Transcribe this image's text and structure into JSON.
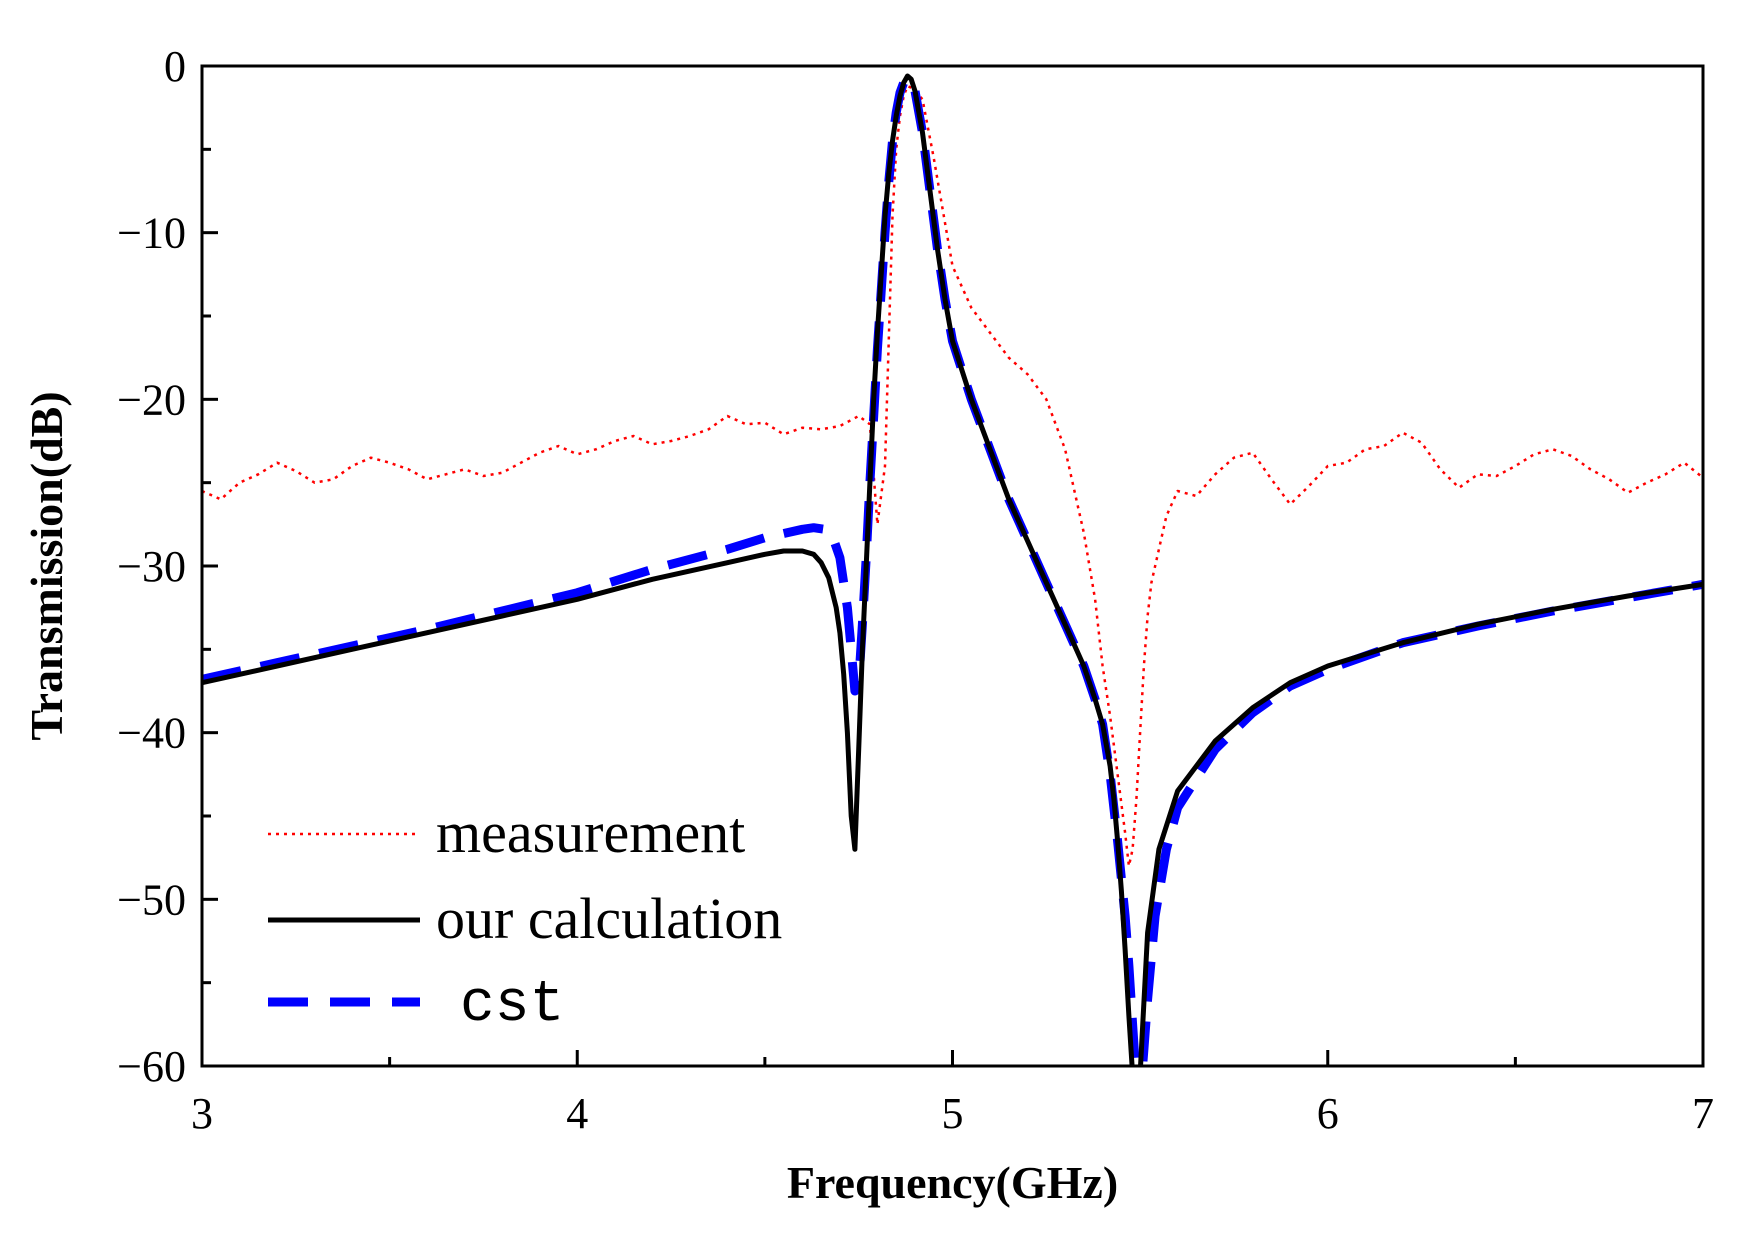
{
  "chart_data": {
    "type": "line",
    "title": "",
    "xlabel": "Frequency(GHz)",
    "ylabel": "Transmission(dB)",
    "xlim": [
      3,
      7
    ],
    "ylim": [
      -60,
      0
    ],
    "x_ticks": [
      3,
      4,
      5,
      6,
      7
    ],
    "x_tick_labels": [
      "3",
      "4",
      "5",
      "6",
      "7"
    ],
    "y_ticks": [
      0,
      -10,
      -20,
      -30,
      -40,
      -50,
      -60
    ],
    "y_tick_labels": [
      "0",
      "−10",
      "−20",
      "−30",
      "−40",
      "−50",
      "−60"
    ],
    "grid": false,
    "legend_position": "bottom-left",
    "series": [
      {
        "name": "measurement",
        "color": "#ff0000",
        "style": "dotted",
        "x": [
          3.0,
          3.05,
          3.1,
          3.15,
          3.2,
          3.25,
          3.3,
          3.35,
          3.4,
          3.45,
          3.5,
          3.55,
          3.6,
          3.65,
          3.7,
          3.75,
          3.8,
          3.85,
          3.9,
          3.95,
          4.0,
          4.05,
          4.1,
          4.15,
          4.2,
          4.25,
          4.3,
          4.35,
          4.4,
          4.45,
          4.5,
          4.55,
          4.6,
          4.65,
          4.7,
          4.75,
          4.78,
          4.8,
          4.82,
          4.84,
          4.85,
          4.86,
          4.87,
          4.88,
          4.89,
          4.9,
          4.92,
          4.95,
          5.0,
          5.05,
          5.1,
          5.15,
          5.2,
          5.25,
          5.3,
          5.35,
          5.38,
          5.4,
          5.42,
          5.44,
          5.46,
          5.47,
          5.48,
          5.49,
          5.5,
          5.51,
          5.52,
          5.53,
          5.55,
          5.57,
          5.6,
          5.65,
          5.7,
          5.75,
          5.8,
          5.85,
          5.9,
          5.95,
          6.0,
          6.05,
          6.1,
          6.15,
          6.2,
          6.25,
          6.3,
          6.35,
          6.4,
          6.45,
          6.5,
          6.55,
          6.6,
          6.65,
          6.7,
          6.75,
          6.8,
          6.85,
          6.9,
          6.95,
          7.0
        ],
        "y": [
          -25.5,
          -26.0,
          -25.0,
          -24.5,
          -23.8,
          -24.3,
          -25.0,
          -24.8,
          -24.0,
          -23.5,
          -23.8,
          -24.2,
          -24.8,
          -24.5,
          -24.2,
          -24.6,
          -24.4,
          -23.8,
          -23.2,
          -22.8,
          -23.3,
          -23.0,
          -22.5,
          -22.2,
          -22.7,
          -22.5,
          -22.2,
          -21.8,
          -21.0,
          -21.5,
          -21.4,
          -22.1,
          -21.7,
          -21.8,
          -21.6,
          -21.0,
          -21.5,
          -27.5,
          -24.0,
          -9.0,
          -5.0,
          -3.0,
          -1.8,
          -1.2,
          -1.3,
          -1.5,
          -2.0,
          -5.5,
          -12.0,
          -14.5,
          -16.0,
          -17.5,
          -18.5,
          -20.0,
          -23.0,
          -28.0,
          -32.0,
          -36.0,
          -39.0,
          -42.5,
          -46.0,
          -48.0,
          -47.0,
          -44.0,
          -40.0,
          -36.0,
          -33.0,
          -31.0,
          -29.0,
          -27.0,
          -25.5,
          -25.8,
          -24.5,
          -23.5,
          -23.2,
          -24.8,
          -26.3,
          -25.2,
          -24.0,
          -23.8,
          -23.0,
          -22.8,
          -22.0,
          -22.6,
          -24.2,
          -25.3,
          -24.5,
          -24.6,
          -24.0,
          -23.3,
          -23.0,
          -23.4,
          -24.2,
          -24.8,
          -25.6,
          -25.0,
          -24.5,
          -23.8,
          -24.7
        ]
      },
      {
        "name": "our calculation",
        "color": "#000000",
        "style": "solid",
        "x": [
          3.0,
          3.2,
          3.4,
          3.6,
          3.8,
          4.0,
          4.2,
          4.4,
          4.5,
          4.55,
          4.6,
          4.63,
          4.65,
          4.67,
          4.69,
          4.7,
          4.71,
          4.72,
          4.73,
          4.74,
          4.75,
          4.76,
          4.77,
          4.78,
          4.79,
          4.8,
          4.81,
          4.82,
          4.83,
          4.84,
          4.85,
          4.86,
          4.87,
          4.88,
          4.89,
          4.9,
          4.92,
          4.94,
          4.96,
          4.98,
          5.0,
          5.05,
          5.1,
          5.15,
          5.2,
          5.25,
          5.3,
          5.35,
          5.38,
          5.4,
          5.42,
          5.43,
          5.44,
          5.45,
          5.46,
          5.47,
          5.48,
          5.49,
          5.5,
          5.52,
          5.55,
          5.6,
          5.7,
          5.8,
          5.9,
          6.0,
          6.2,
          6.4,
          6.6,
          6.8,
          7.0
        ],
        "y": [
          -37.0,
          -36.0,
          -35.0,
          -34.0,
          -33.0,
          -32.0,
          -30.8,
          -29.8,
          -29.3,
          -29.1,
          -29.1,
          -29.3,
          -29.8,
          -30.7,
          -32.5,
          -34.0,
          -36.5,
          -40.0,
          -45.0,
          -47.0,
          -41.0,
          -35.0,
          -30.0,
          -25.0,
          -20.0,
          -16.0,
          -12.5,
          -9.0,
          -6.5,
          -4.5,
          -3.0,
          -1.8,
          -1.0,
          -0.6,
          -0.8,
          -1.5,
          -4.0,
          -7.5,
          -11.0,
          -14.0,
          -16.5,
          -20.0,
          -23.0,
          -26.0,
          -28.5,
          -31.0,
          -33.5,
          -36.0,
          -38.0,
          -39.5,
          -42.0,
          -44.0,
          -46.5,
          -49.5,
          -53.0,
          -57.0,
          -60.5,
          -64.0,
          -60.5,
          -52.0,
          -47.0,
          -43.5,
          -40.5,
          -38.5,
          -37.0,
          -36.0,
          -34.6,
          -33.5,
          -32.6,
          -31.8,
          -31.1
        ]
      },
      {
        "name": "cst",
        "color": "#0000ff",
        "style": "dashed",
        "x": [
          3.0,
          3.2,
          3.4,
          3.6,
          3.8,
          4.0,
          4.2,
          4.4,
          4.5,
          4.6,
          4.63,
          4.66,
          4.68,
          4.7,
          4.72,
          4.73,
          4.74,
          4.75,
          4.76,
          4.77,
          4.78,
          4.79,
          4.8,
          4.81,
          4.82,
          4.83,
          4.84,
          4.85,
          4.86,
          4.87,
          4.88,
          4.89,
          4.9,
          4.92,
          4.94,
          4.96,
          4.98,
          5.0,
          5.05,
          5.1,
          5.15,
          5.2,
          5.25,
          5.3,
          5.35,
          5.38,
          5.4,
          5.42,
          5.44,
          5.46,
          5.47,
          5.48,
          5.49,
          5.5,
          5.51,
          5.52,
          5.54,
          5.57,
          5.6,
          5.7,
          5.8,
          5.9,
          6.0,
          6.2,
          6.4,
          6.6,
          6.8,
          7.0
        ],
        "y": [
          -36.8,
          -35.8,
          -34.8,
          -33.8,
          -32.7,
          -31.6,
          -30.2,
          -29.0,
          -28.3,
          -27.8,
          -27.7,
          -27.8,
          -28.2,
          -29.5,
          -32.5,
          -35.0,
          -37.5,
          -37.0,
          -33.5,
          -29.5,
          -25.0,
          -21.0,
          -17.0,
          -13.5,
          -10.0,
          -7.0,
          -4.5,
          -2.8,
          -1.6,
          -1.0,
          -0.8,
          -1.0,
          -1.5,
          -4.0,
          -7.5,
          -11.0,
          -14.0,
          -16.5,
          -20.0,
          -23.0,
          -26.0,
          -28.5,
          -31.0,
          -33.5,
          -36.0,
          -38.0,
          -39.5,
          -42.5,
          -46.5,
          -51.0,
          -54.0,
          -57.5,
          -61.0,
          -62.0,
          -59.0,
          -56.0,
          -51.0,
          -47.0,
          -44.5,
          -41.0,
          -38.8,
          -37.2,
          -36.2,
          -34.6,
          -33.6,
          -32.7,
          -31.9,
          -31.1
        ]
      }
    ]
  }
}
